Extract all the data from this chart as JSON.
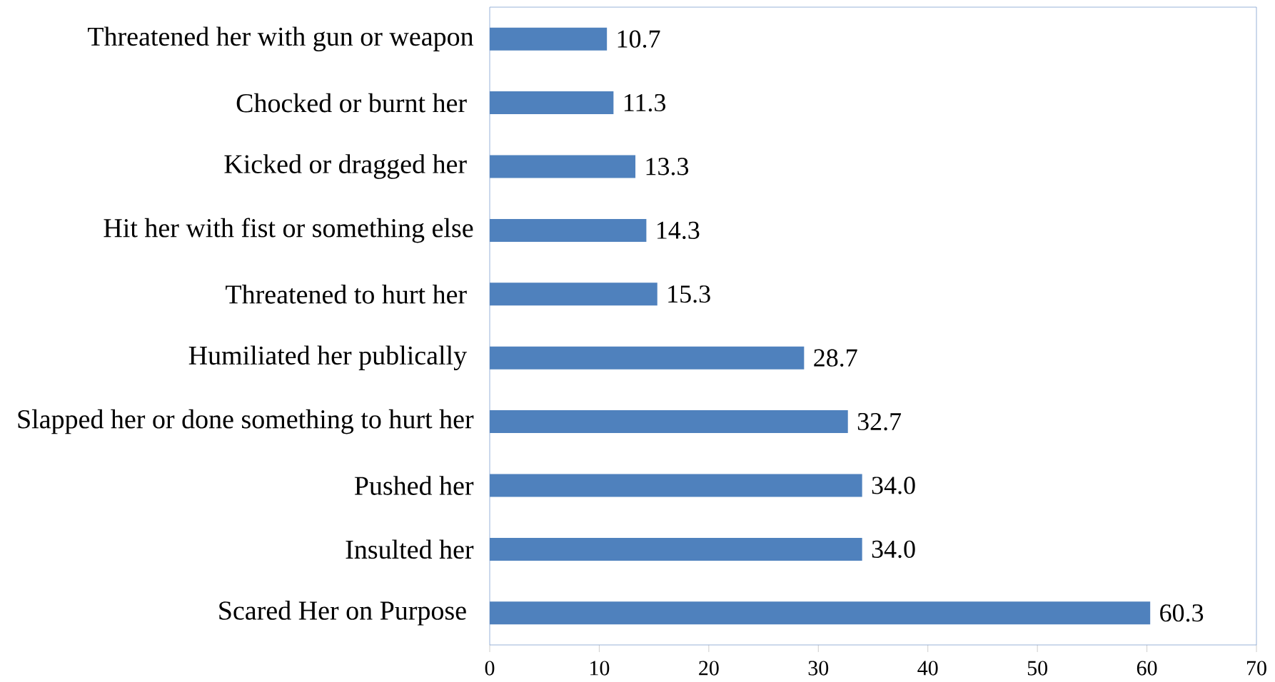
{
  "chart_data": {
    "type": "bar",
    "orientation": "horizontal",
    "categories": [
      "Threatened her with gun or weapon",
      "Chocked or burnt her ",
      "Kicked or dragged her ",
      "Hit her with fist or something else",
      "Threatened to hurt her ",
      "Humiliated her publically ",
      "Slapped her or done something to hurt her",
      "Pushed her",
      "Insulted her",
      "Scared Her on Purpose "
    ],
    "values": [
      10.7,
      11.3,
      13.3,
      14.3,
      15.3,
      28.7,
      32.7,
      34.0,
      34.0,
      60.3
    ],
    "value_labels": [
      "10.7",
      "11.3",
      "13.3",
      "14.3",
      "15.3",
      "28.7",
      "32.7",
      "34.0",
      "34.0",
      "60.3"
    ],
    "color": "#4f81bd",
    "xlim": [
      0,
      70
    ],
    "xticks": [
      0,
      10,
      20,
      30,
      40,
      50,
      60,
      70
    ],
    "grid": false
  }
}
